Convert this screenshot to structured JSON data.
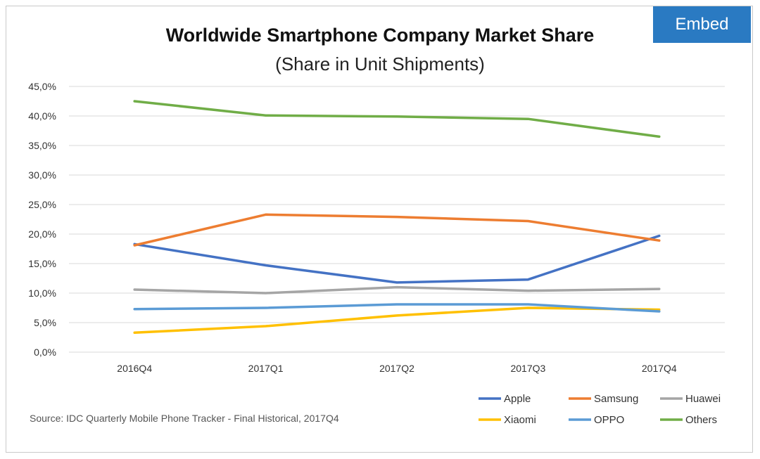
{
  "embed": {
    "label": "Embed"
  },
  "colors": {
    "Apple": "#4472c4",
    "Samsung": "#ed7d31",
    "Huawei": "#a5a5a5",
    "Xiaomi": "#ffc000",
    "OPPO": "#5b9bd5",
    "Others": "#70ad47"
  },
  "source": "Source: IDC Quarterly Mobile Phone Tracker - Final Historical, 2017Q4",
  "chart_data": {
    "type": "line",
    "title": "Worldwide Smartphone Company Market Share",
    "subtitle": "(Share in Unit Shipments)",
    "xlabel": "",
    "ylabel": "",
    "ylim": [
      0,
      45
    ],
    "y_ticks": [
      "0,0%",
      "5,0%",
      "10,0%",
      "15,0%",
      "20,0%",
      "25,0%",
      "30,0%",
      "35,0%",
      "40,0%",
      "45,0%"
    ],
    "categories": [
      "2016Q4",
      "2017Q1",
      "2017Q2",
      "2017Q3",
      "2017Q4"
    ],
    "grid": true,
    "legend_position": "bottom-right",
    "series": [
      {
        "name": "Apple",
        "values": [
          18.3,
          14.7,
          11.8,
          12.3,
          19.7
        ]
      },
      {
        "name": "Samsung",
        "values": [
          18.1,
          23.3,
          22.9,
          22.2,
          18.9
        ]
      },
      {
        "name": "Huawei",
        "values": [
          10.6,
          10.0,
          11.0,
          10.4,
          10.7
        ]
      },
      {
        "name": "Xiaomi",
        "values": [
          3.3,
          4.4,
          6.2,
          7.5,
          7.2
        ]
      },
      {
        "name": "OPPO",
        "values": [
          7.3,
          7.5,
          8.1,
          8.1,
          6.9
        ]
      },
      {
        "name": "Others",
        "values": [
          42.5,
          40.1,
          39.9,
          39.5,
          36.5
        ]
      }
    ]
  }
}
